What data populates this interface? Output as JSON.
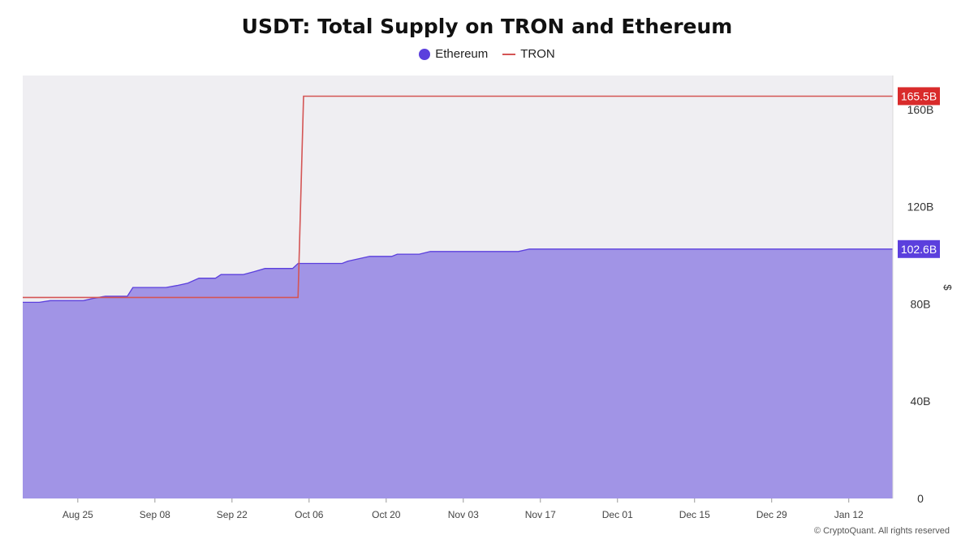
{
  "chart_data": {
    "type": "area",
    "title": "USDT: Total Supply on TRON and Ethereum",
    "ylabel": "$",
    "ylim": [
      0,
      174
    ],
    "y_ticks": [
      0,
      40,
      80,
      120,
      160
    ],
    "y_tick_labels": [
      "0",
      "40B",
      "80B",
      "120B",
      "160B"
    ],
    "x_range_days": [
      0,
      158
    ],
    "x_ticks": [
      {
        "label": "Aug 25",
        "day": 10
      },
      {
        "label": "Sep 08",
        "day": 24
      },
      {
        "label": "Sep 22",
        "day": 38
      },
      {
        "label": "Oct 06",
        "day": 52
      },
      {
        "label": "Oct 20",
        "day": 66
      },
      {
        "label": "Nov 03",
        "day": 80
      },
      {
        "label": "Nov 17",
        "day": 94
      },
      {
        "label": "Dec 01",
        "day": 108
      },
      {
        "label": "Dec 15",
        "day": 122
      },
      {
        "label": "Dec 29",
        "day": 136
      },
      {
        "label": "Jan 12",
        "day": 150
      }
    ],
    "series": [
      {
        "name": "Ethereum",
        "style": "area",
        "color": "#5b3fdd",
        "fill": "#a194e6",
        "last_value_label": "102.6B",
        "points": [
          [
            0,
            80.7
          ],
          [
            3,
            80.7
          ],
          [
            5,
            81.4
          ],
          [
            11,
            81.4
          ],
          [
            13,
            82.4
          ],
          [
            15,
            83.2
          ],
          [
            19,
            83.2
          ],
          [
            20,
            86.8
          ],
          [
            26,
            86.8
          ],
          [
            28,
            87.6
          ],
          [
            30,
            88.6
          ],
          [
            32,
            90.6
          ],
          [
            35,
            90.6
          ],
          [
            36,
            92.1
          ],
          [
            40,
            92.1
          ],
          [
            42,
            93.3
          ],
          [
            44,
            94.6
          ],
          [
            49,
            94.6
          ],
          [
            50,
            96.7
          ],
          [
            58,
            96.7
          ],
          [
            59,
            97.6
          ],
          [
            61,
            98.6
          ],
          [
            63,
            99.6
          ],
          [
            67,
            99.6
          ],
          [
            68,
            100.5
          ],
          [
            72,
            100.5
          ],
          [
            74,
            101.6
          ],
          [
            90,
            101.6
          ],
          [
            92,
            102.6
          ],
          [
            158,
            102.6
          ]
        ]
      },
      {
        "name": "TRON",
        "style": "line",
        "color": "#d45555",
        "last_value_label": "165.5B",
        "points": [
          [
            0,
            82.7
          ],
          [
            50,
            82.7
          ],
          [
            51,
            165.5
          ],
          [
            158,
            165.5
          ]
        ]
      }
    ],
    "watermark": "CryptoQuant"
  },
  "copyright": "© CryptoQuant. All rights reserved",
  "badge_colors": {
    "Ethereum": "#5b3fdd",
    "TRON": "#d92b2b"
  },
  "plot_background": "#efeef2"
}
